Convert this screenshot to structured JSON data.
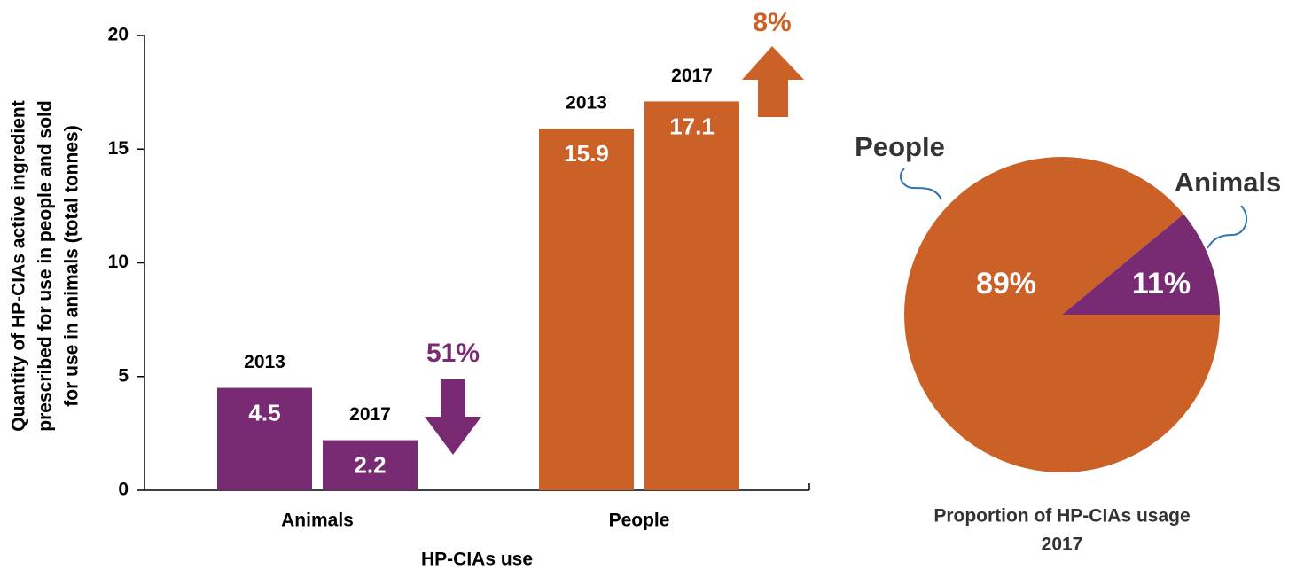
{
  "chart_data": [
    {
      "type": "bar",
      "ylabel": [
        "Quantity of HP-CIAs active ingredient",
        "prescribed for use in people and sold",
        "for use in animals (total tonnes)"
      ],
      "xlabel": "HP-CIAs use",
      "categories": [
        "Animals",
        "People"
      ],
      "colors": [
        "#782a72",
        "#cc6127"
      ],
      "series": [
        {
          "name": "2013",
          "values": [
            4.5,
            15.9
          ]
        },
        {
          "name": "2017",
          "values": [
            2.2,
            17.1
          ]
        }
      ],
      "annotations": [
        "51%",
        "8%"
      ],
      "ylim": [
        0,
        20
      ],
      "yticks": [
        0,
        5,
        10,
        15,
        20
      ],
      "grid": false
    },
    {
      "type": "pie",
      "title": "Proportion of HP-CIAs usage",
      "subtitle": "2017",
      "categories": [
        "People",
        "Animals"
      ],
      "values": [
        89,
        11
      ],
      "value_labels": [
        "89%",
        "11%"
      ],
      "colors": [
        "#cc6127",
        "#782a72"
      ]
    }
  ]
}
